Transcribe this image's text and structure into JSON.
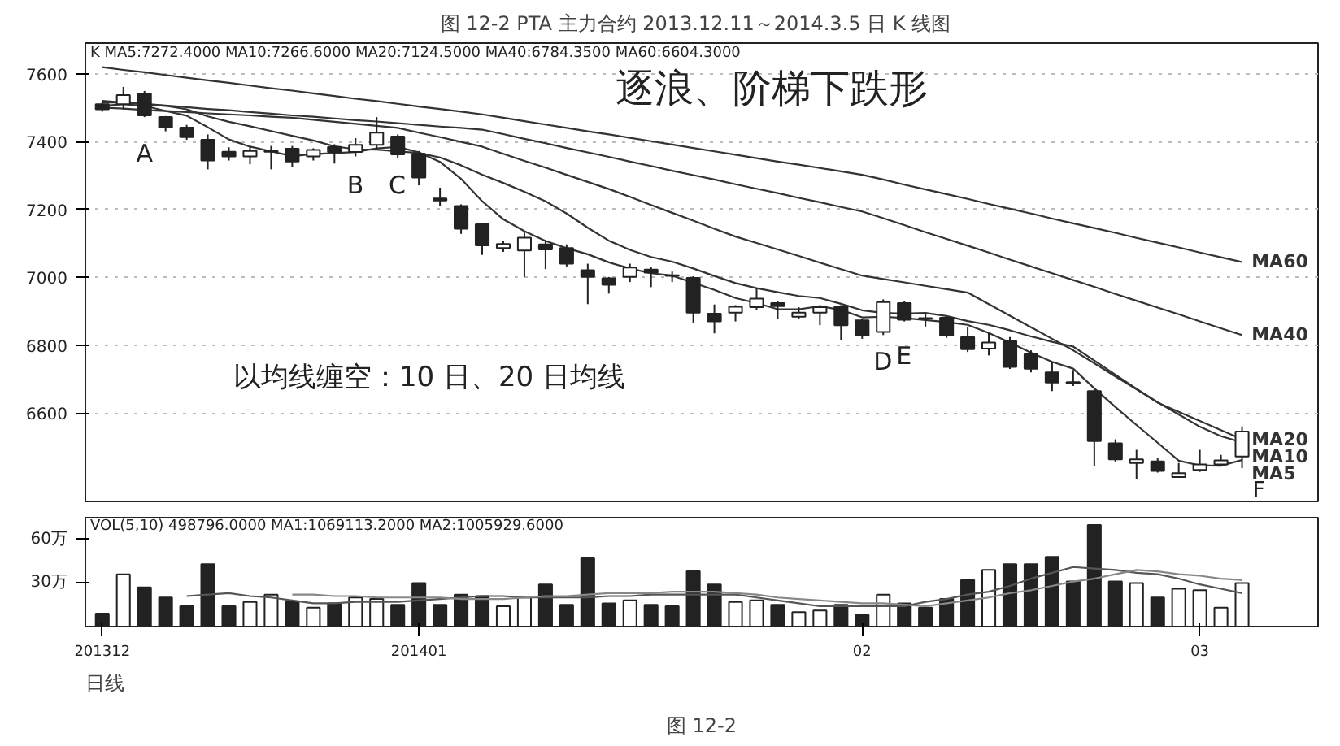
{
  "chart_data": [
    {
      "type": "candlestick",
      "title": "图 12-2   PTA 主力合约 2013.12.11～2014.3.5 日 K 线图",
      "categories": [
        "201312",
        null,
        null,
        null,
        null,
        null,
        null,
        null,
        null,
        null,
        null,
        null,
        null,
        null,
        null,
        "201401",
        null,
        null,
        null,
        null,
        null,
        null,
        null,
        null,
        null,
        null,
        null,
        null,
        null,
        null,
        null,
        null,
        null,
        null,
        null,
        null,
        "02",
        null,
        null,
        null,
        null,
        null,
        null,
        null,
        null,
        null,
        null,
        null,
        null,
        null,
        null,
        null,
        "03",
        null,
        null
      ],
      "ohlc": [
        [
          7510,
          7518,
          7488,
          7495
        ],
        [
          7510,
          7561,
          7495,
          7537
        ],
        [
          7541,
          7549,
          7472,
          7477
        ],
        [
          7472,
          7475,
          7430,
          7441
        ],
        [
          7441,
          7449,
          7405,
          7413
        ],
        [
          7405,
          7421,
          7318,
          7344
        ],
        [
          7370,
          7383,
          7344,
          7356
        ],
        [
          7356,
          7384,
          7333,
          7372
        ],
        [
          7370,
          7387,
          7318,
          7372
        ],
        [
          7379,
          7387,
          7325,
          7341
        ],
        [
          7356,
          7380,
          7344,
          7375
        ],
        [
          7384,
          7392,
          7335,
          7369
        ],
        [
          7369,
          7410,
          7356,
          7390
        ],
        [
          7390,
          7472,
          7379,
          7426
        ],
        [
          7415,
          7421,
          7350,
          7362
        ],
        [
          7364,
          7372,
          7271,
          7294
        ],
        [
          7232,
          7264,
          7210,
          7226
        ],
        [
          7210,
          7215,
          7128,
          7143
        ],
        [
          7156,
          7160,
          7066,
          7094
        ],
        [
          7086,
          7106,
          7075,
          7098
        ],
        [
          7079,
          7132,
          7001,
          7117
        ],
        [
          7097,
          7109,
          7024,
          7082
        ],
        [
          7086,
          7097,
          7032,
          7040
        ],
        [
          7021,
          7040,
          6921,
          7001
        ],
        [
          6997,
          7001,
          6952,
          6978
        ],
        [
          7001,
          7040,
          6986,
          7029
        ],
        [
          7023,
          7030,
          6971,
          7014
        ],
        [
          7006,
          7017,
          6986,
          7004
        ],
        [
          6998,
          7003,
          6866,
          6896
        ],
        [
          6893,
          6920,
          6835,
          6870
        ],
        [
          6896,
          6918,
          6870,
          6913
        ],
        [
          6912,
          6967,
          6905,
          6937
        ],
        [
          6924,
          6930,
          6878,
          6915
        ],
        [
          6884,
          6912,
          6876,
          6896
        ],
        [
          6896,
          6918,
          6859,
          6912
        ],
        [
          6913,
          6918,
          6816,
          6859
        ],
        [
          6873,
          6878,
          6819,
          6828
        ],
        [
          6839,
          6935,
          6830,
          6927
        ],
        [
          6924,
          6930,
          6870,
          6875
        ],
        [
          6878,
          6893,
          6855,
          6880
        ],
        [
          6881,
          6885,
          6822,
          6829
        ],
        [
          6824,
          6853,
          6780,
          6788
        ],
        [
          6790,
          6835,
          6770,
          6808
        ],
        [
          6812,
          6824,
          6730,
          6736
        ],
        [
          6774,
          6785,
          6720,
          6731
        ],
        [
          6720,
          6751,
          6665,
          6690
        ],
        [
          6691,
          6727,
          6680,
          6689
        ],
        [
          6665,
          6670,
          6443,
          6518
        ],
        [
          6511,
          6523,
          6455,
          6464
        ],
        [
          6453,
          6492,
          6407,
          6464
        ],
        [
          6458,
          6467,
          6425,
          6430
        ],
        [
          6412,
          6453,
          6410,
          6423
        ],
        [
          6433,
          6492,
          6427,
          6449
        ],
        [
          6449,
          6477,
          6443,
          6461
        ],
        [
          6472,
          6561,
          6438,
          6546
        ]
      ],
      "series": [
        {
          "type": "line",
          "name": "MA60",
          "color": "#333333",
          "values": [
            7619,
            7611,
            7604,
            7596,
            7588,
            7580,
            7573,
            7565,
            7557,
            7550,
            7542,
            7534,
            7526,
            7519,
            7511,
            7503,
            7496,
            7488,
            7480,
            7470,
            7460,
            7450,
            7440,
            7430,
            7421,
            7411,
            7401,
            7391,
            7381,
            7371,
            7361,
            7351,
            7341,
            7332,
            7322,
            7312,
            7302,
            7288,
            7273,
            7259,
            7245,
            7231,
            7216,
            7202,
            7188,
            7173,
            7159,
            7145,
            7131,
            7116,
            7102,
            7088,
            7073,
            7059,
            7045
          ]
        },
        {
          "type": "line",
          "name": "MA40",
          "color": "#333333",
          "values": [
            7520,
            7515,
            7511,
            7506,
            7501,
            7496,
            7492,
            7487,
            7482,
            7477,
            7473,
            7468,
            7463,
            7459,
            7454,
            7449,
            7444,
            7440,
            7435,
            7422,
            7408,
            7395,
            7381,
            7368,
            7355,
            7341,
            7328,
            7314,
            7301,
            7288,
            7274,
            7261,
            7248,
            7234,
            7221,
            7207,
            7194,
            7174,
            7154,
            7133,
            7113,
            7093,
            7073,
            7052,
            7032,
            7012,
            6992,
            6972,
            6951,
            6931,
            6911,
            6891,
            6870,
            6850,
            6830
          ]
        },
        {
          "type": "line",
          "name": "MA20",
          "color": "#333333",
          "values": [
            7500,
            7497,
            7493,
            7490,
            7487,
            7483,
            7480,
            7477,
            7473,
            7470,
            7464,
            7458,
            7452,
            7446,
            7440,
            7426,
            7413,
            7399,
            7385,
            7364,
            7343,
            7323,
            7302,
            7281,
            7260,
            7237,
            7213,
            7190,
            7167,
            7143,
            7120,
            7101,
            7082,
            7063,
            7043,
            7024,
            7005,
            6995,
            6985,
            6975,
            6965,
            6955,
            6921,
            6887,
            6853,
            6819,
            6785,
            6747,
            6708,
            6670,
            6631,
            6604,
            6577,
            6550,
            6523
          ]
        },
        {
          "type": "line",
          "name": "MA10",
          "color": "#333333",
          "values": [
            7515,
            7515,
            7510,
            7505,
            7495,
            7474,
            7458,
            7445,
            7431,
            7417,
            7403,
            7386,
            7377,
            7376,
            7371,
            7366,
            7353,
            7330,
            7302,
            7278,
            7252,
            7224,
            7188,
            7146,
            7108,
            7081,
            7060,
            7046,
            7026,
            7004,
            6983,
            6968,
            6956,
            6945,
            6939,
            6922,
            6903,
            6895,
            6893,
            6895,
            6886,
            6871,
            6860,
            6844,
            6826,
            6810,
            6796,
            6755,
            6713,
            6672,
            6632,
            6596,
            6560,
            6532,
            6514
          ]
        },
        {
          "type": "line",
          "name": "MA5",
          "color": "#333333",
          "values": [
            7505,
            7510,
            7505,
            7490,
            7476,
            7442,
            7406,
            7385,
            7371,
            7357,
            7363,
            7366,
            7369,
            7380,
            7384,
            7368,
            7340,
            7290,
            7224,
            7171,
            7136,
            7107,
            7086,
            7068,
            7044,
            7026,
            7012,
            7005,
            6984,
            6963,
            6939,
            6924,
            6906,
            6906,
            6915,
            6904,
            6882,
            6884,
            6880,
            6874,
            6868,
            6860,
            6836,
            6808,
            6778,
            6751,
            6731,
            6673,
            6618,
            6565,
            6513,
            6460,
            6446,
            6445,
            6462
          ]
        }
      ],
      "ylim": [
        6340,
        7690
      ],
      "yticks": [
        6600,
        6800,
        7000,
        7200,
        7400,
        7600
      ],
      "tick_labels": "y",
      "grid": "y",
      "line_style": "solid",
      "annotations": [
        "K  MA5:7272.4000  MA10:7266.6000  MA20:7124.5000  MA40:6784.3500  MA60:6604.3000",
        "逐浪、阶梯下跌形",
        "以均线缠空：10 日、20 日均线",
        "A",
        "B",
        "C",
        "D",
        "E",
        "F"
      ]
    },
    {
      "type": "bar",
      "categories": [
        "201312",
        null,
        null,
        null,
        null,
        null,
        null,
        null,
        null,
        null,
        null,
        null,
        null,
        null,
        null,
        "201401",
        null,
        null,
        null,
        null,
        null,
        null,
        null,
        null,
        null,
        null,
        null,
        null,
        null,
        null,
        null,
        null,
        null,
        null,
        null,
        null,
        "02",
        null,
        null,
        null,
        null,
        null,
        null,
        null,
        null,
        null,
        null,
        null,
        null,
        null,
        null,
        null,
        "03",
        null,
        null
      ],
      "series": [
        {
          "type": "bar",
          "color": "#222222",
          "values": [
            9,
            36,
            27,
            20,
            14,
            43,
            14,
            17,
            22,
            17,
            13,
            16,
            20,
            19,
            15,
            30,
            15,
            22,
            21,
            14,
            20,
            29,
            15,
            47,
            16,
            18,
            15,
            14,
            38,
            29,
            17,
            18,
            15,
            10,
            11,
            15,
            8,
            22,
            16,
            13,
            19,
            32,
            39,
            43,
            43,
            48,
            31,
            70,
            31,
            30,
            20,
            26,
            25,
            13,
            30
          ],
          "colors": [
            "#222222",
            "#ffffff",
            "#222222",
            "#222222",
            "#222222",
            "#222222",
            "#222222",
            "#ffffff",
            "#ffffff",
            "#222222",
            "#ffffff",
            "#222222",
            "#ffffff",
            "#ffffff",
            "#222222",
            "#222222",
            "#222222",
            "#222222",
            "#222222",
            "#ffffff",
            "#ffffff",
            "#222222",
            "#222222",
            "#222222",
            "#222222",
            "#ffffff",
            "#222222",
            "#222222",
            "#222222",
            "#222222",
            "#ffffff",
            "#ffffff",
            "#222222",
            "#ffffff",
            "#ffffff",
            "#222222",
            "#222222",
            "#ffffff",
            "#222222",
            "#222222",
            "#222222",
            "#222222",
            "#ffffff",
            "#222222",
            "#222222",
            "#222222",
            "#222222",
            "#222222",
            "#222222",
            "#ffffff",
            "#222222",
            "#ffffff",
            "#ffffff",
            "#ffffff",
            "#ffffff"
          ]
        },
        {
          "type": "line",
          "color": "#555555",
          "values": [
            null,
            null,
            null,
            null,
            21,
            22,
            23,
            21,
            20,
            18,
            16,
            16,
            17,
            17,
            17,
            18,
            19,
            20,
            21,
            21,
            20,
            20,
            20,
            20,
            21,
            21,
            22,
            22,
            22,
            22,
            22,
            20,
            18,
            16,
            14,
            14,
            14,
            14,
            14,
            17,
            19,
            22,
            24,
            28,
            33,
            37,
            41,
            40,
            39,
            37,
            36,
            33,
            29,
            26,
            23
          ]
        },
        {
          "type": "line",
          "color": "#888888",
          "values": [
            null,
            null,
            null,
            null,
            null,
            null,
            null,
            null,
            null,
            22,
            22,
            21,
            21,
            20,
            20,
            20,
            20,
            19,
            19,
            19,
            20,
            21,
            21,
            22,
            23,
            23,
            23,
            24,
            24,
            24,
            23,
            22,
            20,
            19,
            18,
            17,
            16,
            16,
            15,
            14,
            16,
            18,
            20,
            23,
            25,
            28,
            31,
            33,
            36,
            39,
            38,
            36,
            35,
            33,
            32
          ]
        }
      ],
      "ylim": [
        0,
        75
      ],
      "yticks": [
        {
          "value": 30,
          "label": "30万"
        },
        {
          "value": 60,
          "label": "60万"
        }
      ],
      "line_style": "solid",
      "annotations": [
        "VOL(5,10) 498796.0000 MA1:1069113.2000 MA2:1005929.6000",
        "日线",
        "图 12-2"
      ]
    }
  ]
}
